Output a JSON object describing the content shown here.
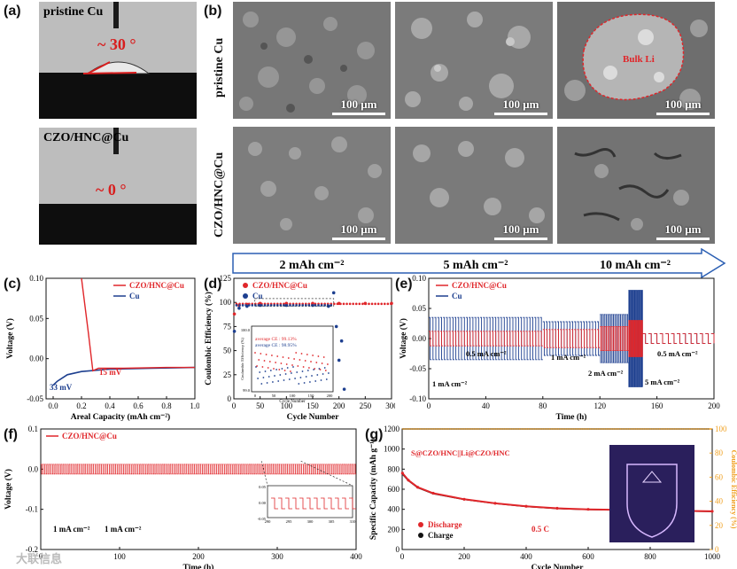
{
  "panel_labels": {
    "a": "(a)",
    "b": "(b)",
    "c": "(c)",
    "d": "(d)",
    "e": "(e)",
    "f": "(f)",
    "g": "(g)"
  },
  "panel_a": {
    "top_label": "pristine Cu",
    "top_angle": "~ 30 °",
    "bottom_label": "CZO/HNC@Cu",
    "bottom_angle": "~ 0 °"
  },
  "panel_b": {
    "row_labels": [
      "pristine Cu",
      "CZO/HNC@Cu"
    ],
    "scale_bar": "100 μm",
    "annotation": "Bulk Li",
    "arrow_labels": [
      "2 mAh cm⁻²",
      "5 mAh cm⁻²",
      "10 mAh cm⁻²"
    ]
  },
  "colors": {
    "red": "#e0262a",
    "blue": "#1d3f8f",
    "orange": "#f0a020",
    "black": "#111111"
  },
  "chart_data": [
    {
      "panel": "c",
      "type": "line",
      "xlabel": "Areal Capacity (mAh cm⁻²)",
      "ylabel": "Voltage (V)",
      "xlim": [
        -0.05,
        1.0
      ],
      "ylim": [
        -0.05,
        0.1
      ],
      "xticks": [
        "0.0",
        "0.2",
        "0.4",
        "0.6",
        "0.8",
        "1.0"
      ],
      "yticks": [
        "0.10",
        "0.05",
        "0.00",
        "-0.05"
      ],
      "series": [
        {
          "name": "CZO/HNC@Cu",
          "x": [
            0.2,
            0.25,
            0.28,
            0.32,
            0.5,
            0.8,
            1.0
          ],
          "y": [
            0.1,
            0.03,
            -0.015,
            -0.012,
            -0.012,
            -0.011,
            -0.011
          ]
        },
        {
          "name": "Cu",
          "x": [
            0.0,
            0.03,
            0.1,
            0.2,
            0.4,
            0.7,
            1.0
          ],
          "y": [
            -0.033,
            -0.028,
            -0.02,
            -0.016,
            -0.013,
            -0.012,
            -0.011
          ]
        }
      ],
      "annotations": [
        "33 mV",
        "15 mV"
      ]
    },
    {
      "panel": "d",
      "type": "scatter",
      "xlabel": "Cycle Number",
      "ylabel": "Coulombic Efficiency (%)",
      "xlim": [
        0,
        300
      ],
      "ylim": [
        0,
        125
      ],
      "xticks": [
        "0",
        "50",
        "100",
        "150",
        "200",
        "250",
        "300"
      ],
      "yticks": [
        "0",
        "25",
        "50",
        "75",
        "100",
        "125"
      ],
      "series": [
        {
          "name": "CZO/HNC@Cu",
          "x": [
            1,
            10,
            25,
            50,
            100,
            150,
            200,
            250,
            300
          ],
          "y": [
            88,
            97,
            98,
            99,
            99,
            99,
            99,
            99,
            99
          ]
        },
        {
          "name": "Cu",
          "x": [
            1,
            10,
            25,
            50,
            100,
            150,
            180,
            190,
            195,
            200,
            205,
            210
          ],
          "y": [
            70,
            94,
            96,
            97,
            97,
            97,
            96,
            110,
            75,
            40,
            60,
            10
          ]
        }
      ],
      "inset": {
        "xlabel": "Cycle Number",
        "ylabel": "Coulombic Efficiency (%)",
        "xticks": [
          "0",
          "50",
          "100",
          "150",
          "200"
        ],
        "yticks": [
          "99.0",
          "100.0"
        ],
        "notes": [
          "average CE : 99.13%",
          "average CE : 98.95%"
        ]
      }
    },
    {
      "panel": "e",
      "type": "line",
      "xlabel": "Time (h)",
      "ylabel": "Voltage (V)",
      "xlim": [
        0,
        200
      ],
      "ylim": [
        -0.1,
        0.1
      ],
      "xticks": [
        "0",
        "40",
        "80",
        "120",
        "160",
        "200"
      ],
      "yticks": [
        "0.10",
        "0.05",
        "0.00",
        "-0.05",
        "-0.10"
      ],
      "series": [
        {
          "name": "CZO/HNC@Cu"
        },
        {
          "name": "Cu"
        }
      ],
      "annotations": [
        "1 mA cm⁻²",
        "0.5 mA cm⁻²",
        "1 mA cm⁻²",
        "2 mA cm⁻²",
        "5 mA cm⁻²",
        "0.5 mA cm⁻²"
      ]
    },
    {
      "panel": "f",
      "type": "line",
      "xlabel": "Time (h)",
      "ylabel": "Voltage (V)",
      "xlim": [
        0,
        400
      ],
      "ylim": [
        -0.2,
        0.1
      ],
      "xticks": [
        "0",
        "100",
        "200",
        "300",
        "400"
      ],
      "yticks": [
        "0.1",
        "0.0",
        "-0.1",
        "-0.2"
      ],
      "series": [
        {
          "name": "CZO/HNC@Cu"
        }
      ],
      "annotations": [
        "1 mA cm⁻²",
        "1 mA cm⁻²"
      ],
      "inset": {
        "xticks": [
          "290",
          "295",
          "300",
          "305",
          "310"
        ],
        "yticks": [
          "0.05",
          "0.00",
          "-0.05"
        ],
        "xlabel": "Time (h)",
        "ylabel": "Voltage (V)"
      }
    },
    {
      "panel": "g",
      "type": "scatter",
      "title": "S@CZO/HNC||Li@CZO/HNC",
      "xlabel": "Cycle Number",
      "ylabel": "Specific Capacity (mAh g⁻¹)",
      "y2label": "Coulombic Efficiency (%)",
      "xlim": [
        0,
        1000
      ],
      "ylim": [
        0,
        1200
      ],
      "y2lim": [
        0,
        100
      ],
      "xticks": [
        "0",
        "200",
        "400",
        "600",
        "800",
        "1000"
      ],
      "yticks": [
        "0",
        "200",
        "400",
        "600",
        "800",
        "1000",
        "1200"
      ],
      "y2ticks": [
        "0",
        "20",
        "40",
        "60",
        "80",
        "100"
      ],
      "series": [
        {
          "name": "Discharge",
          "x": [
            1,
            20,
            50,
            100,
            200,
            300,
            400,
            500,
            600,
            700,
            800,
            900,
            1000
          ],
          "y": [
            760,
            690,
            620,
            560,
            500,
            460,
            430,
            410,
            400,
            395,
            390,
            385,
            380
          ]
        },
        {
          "name": "Charge",
          "x": [
            1,
            20,
            50,
            100,
            200,
            300,
            400,
            500,
            600,
            700,
            800,
            900,
            1000
          ],
          "y": [
            750,
            685,
            615,
            555,
            498,
            458,
            428,
            408,
            398,
            393,
            388,
            383,
            378
          ]
        }
      ],
      "ce_series": {
        "x": [
          1,
          1000
        ],
        "y": [
          100,
          100
        ]
      },
      "annotations": [
        "0.5 C"
      ]
    }
  ],
  "watermark": "大联信息"
}
